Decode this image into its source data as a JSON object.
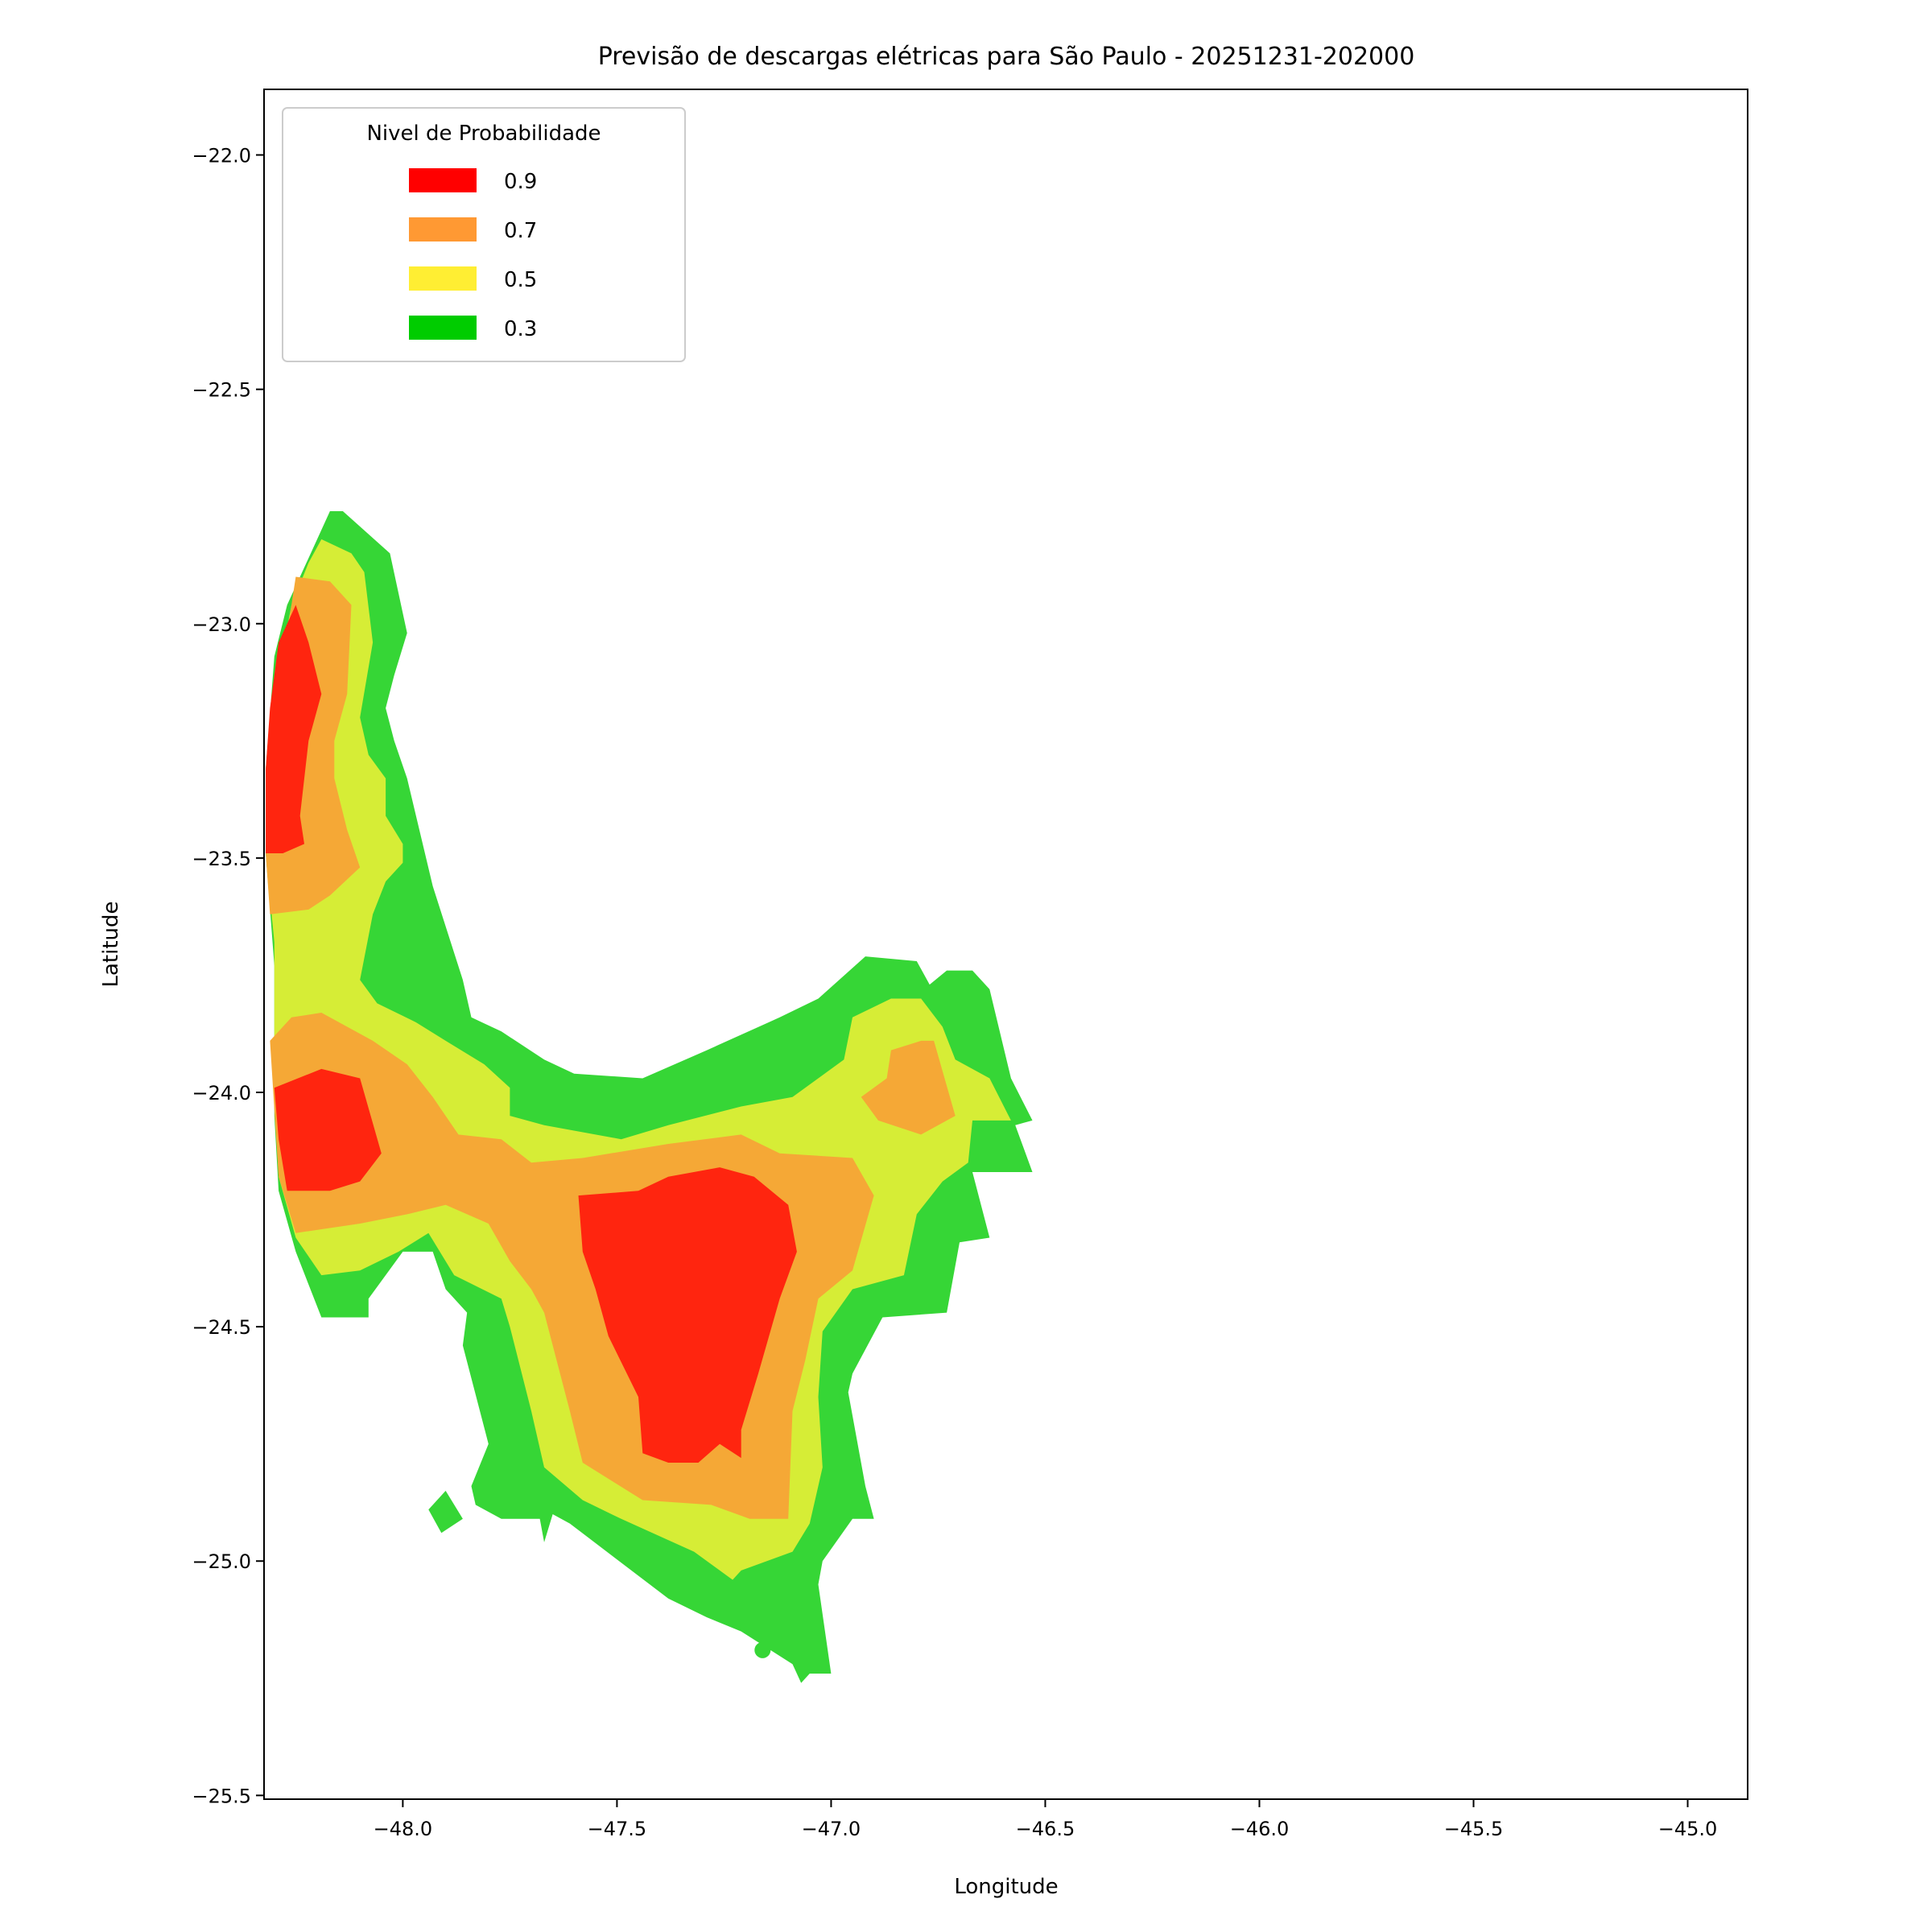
{
  "chart_data": {
    "type": "contour-map",
    "title": "Previsão de descargas elétricas para São Paulo - 20251231-202000",
    "xlabel": "Longitude",
    "ylabel": "Latitude",
    "xlim": [
      -48.324,
      -44.86
    ],
    "ylim": [
      -25.508,
      -21.86
    ],
    "xticks": [
      -48.0,
      -47.5,
      -47.0,
      -46.5,
      -46.0,
      -45.5,
      -45.0
    ],
    "xtick_labels": [
      "−48.0",
      "−47.5",
      "−47.0",
      "−46.5",
      "−46.0",
      "−45.5",
      "−45.0"
    ],
    "yticks": [
      -22.0,
      -22.5,
      -23.0,
      -23.5,
      -24.0,
      -24.5,
      -25.0,
      -25.5
    ],
    "ytick_labels": [
      "−22.0",
      "−22.5",
      "−23.0",
      "−23.5",
      "−24.0",
      "−24.5",
      "−25.0",
      "−25.5"
    ],
    "grid": false,
    "legend": {
      "title": "Nivel de Probabilidade",
      "placement": "upper-left",
      "entries": [
        {
          "label": "0.9",
          "color": "#ff0000"
        },
        {
          "label": "0.7",
          "color": "#ff9933"
        },
        {
          "label": "0.5",
          "color": "#ffee33"
        },
        {
          "label": "0.3",
          "color": "#00cc00"
        }
      ]
    },
    "levels": [
      {
        "level": 0.3,
        "fill": "#36d636",
        "polygons": [
          [
            [
              -48.17,
              -22.76
            ],
            [
              -48.14,
              -22.76
            ],
            [
              -48.03,
              -22.85
            ],
            [
              -47.99,
              -23.02
            ],
            [
              -48.02,
              -23.11
            ],
            [
              -48.04,
              -23.18
            ],
            [
              -48.02,
              -23.25
            ],
            [
              -47.99,
              -23.33
            ],
            [
              -47.93,
              -23.56
            ],
            [
              -47.86,
              -23.76
            ],
            [
              -47.84,
              -23.84
            ],
            [
              -47.77,
              -23.87
            ],
            [
              -47.67,
              -23.93
            ],
            [
              -47.6,
              -23.96
            ],
            [
              -47.44,
              -23.97
            ],
            [
              -47.29,
              -23.91
            ],
            [
              -47.12,
              -23.84
            ],
            [
              -47.03,
              -23.8
            ],
            [
              -46.92,
              -23.71
            ],
            [
              -46.8,
              -23.72
            ],
            [
              -46.77,
              -23.77
            ],
            [
              -46.73,
              -23.74
            ],
            [
              -46.67,
              -23.74
            ],
            [
              -46.63,
              -23.78
            ],
            [
              -46.58,
              -23.97
            ],
            [
              -46.53,
              -24.06
            ],
            [
              -46.57,
              -24.07
            ],
            [
              -46.53,
              -24.17
            ],
            [
              -46.67,
              -24.17
            ],
            [
              -46.63,
              -24.31
            ],
            [
              -46.7,
              -24.32
            ],
            [
              -46.73,
              -24.47
            ],
            [
              -46.88,
              -24.48
            ],
            [
              -46.95,
              -24.6
            ],
            [
              -46.96,
              -24.64
            ],
            [
              -46.92,
              -24.84
            ],
            [
              -46.9,
              -24.91
            ],
            [
              -46.95,
              -24.91
            ],
            [
              -47.02,
              -25.0
            ],
            [
              -47.03,
              -25.05
            ],
            [
              -47.0,
              -25.24
            ],
            [
              -47.05,
              -25.24
            ],
            [
              -47.07,
              -25.26
            ],
            [
              -47.09,
              -25.22
            ],
            [
              -47.21,
              -25.15
            ],
            [
              -47.29,
              -25.12
            ],
            [
              -47.38,
              -25.08
            ],
            [
              -47.61,
              -24.92
            ],
            [
              -47.65,
              -24.9
            ],
            [
              -47.67,
              -24.96
            ],
            [
              -47.68,
              -24.91
            ],
            [
              -47.77,
              -24.91
            ],
            [
              -47.83,
              -24.88
            ],
            [
              -47.84,
              -24.84
            ],
            [
              -47.8,
              -24.75
            ],
            [
              -47.86,
              -24.54
            ],
            [
              -47.85,
              -24.47
            ],
            [
              -47.9,
              -24.42
            ],
            [
              -47.93,
              -24.34
            ],
            [
              -48.0,
              -24.34
            ],
            [
              -48.08,
              -24.44
            ],
            [
              -48.08,
              -24.48
            ],
            [
              -48.19,
              -24.48
            ],
            [
              -48.25,
              -24.34
            ],
            [
              -48.29,
              -24.21
            ],
            [
              -48.3,
              -24.05
            ],
            [
              -48.3,
              -23.73
            ],
            [
              -48.32,
              -23.49
            ],
            [
              -48.32,
              -23.31
            ],
            [
              -48.3,
              -23.07
            ],
            [
              -48.27,
              -22.96
            ],
            [
              -48.23,
              -22.88
            ],
            [
              -48.2,
              -22.82
            ]
          ],
          [
            [
              -47.94,
              -24.89
            ],
            [
              -47.91,
              -24.94
            ],
            [
              -47.86,
              -24.91
            ],
            [
              -47.9,
              -24.85
            ]
          ]
        ],
        "points": [
          [
            -47.16,
            -25.19
          ]
        ]
      },
      {
        "level": 0.5,
        "fill": "#d6ed36",
        "polygons": [
          [
            [
              -48.19,
              -22.82
            ],
            [
              -48.12,
              -22.85
            ],
            [
              -48.09,
              -22.89
            ],
            [
              -48.07,
              -23.04
            ],
            [
              -48.1,
              -23.2
            ],
            [
              -48.08,
              -23.28
            ],
            [
              -48.04,
              -23.33
            ],
            [
              -48.04,
              -23.41
            ],
            [
              -48.0,
              -23.47
            ],
            [
              -48.0,
              -23.51
            ],
            [
              -48.04,
              -23.55
            ],
            [
              -48.07,
              -23.62
            ],
            [
              -48.1,
              -23.76
            ],
            [
              -48.06,
              -23.81
            ],
            [
              -47.97,
              -23.85
            ],
            [
              -47.9,
              -23.89
            ],
            [
              -47.81,
              -23.94
            ],
            [
              -47.75,
              -23.99
            ],
            [
              -47.75,
              -24.05
            ],
            [
              -47.67,
              -24.07
            ],
            [
              -47.49,
              -24.1
            ],
            [
              -47.38,
              -24.07
            ],
            [
              -47.21,
              -24.03
            ],
            [
              -47.09,
              -24.01
            ],
            [
              -46.97,
              -23.93
            ],
            [
              -46.95,
              -23.84
            ],
            [
              -46.86,
              -23.8
            ],
            [
              -46.79,
              -23.8
            ],
            [
              -46.74,
              -23.86
            ],
            [
              -46.71,
              -23.93
            ],
            [
              -46.63,
              -23.97
            ],
            [
              -46.58,
              -24.06
            ],
            [
              -46.67,
              -24.06
            ],
            [
              -46.68,
              -24.15
            ],
            [
              -46.74,
              -24.19
            ],
            [
              -46.8,
              -24.26
            ],
            [
              -46.83,
              -24.39
            ],
            [
              -46.95,
              -24.42
            ],
            [
              -47.02,
              -24.51
            ],
            [
              -47.03,
              -24.65
            ],
            [
              -47.02,
              -24.8
            ],
            [
              -47.05,
              -24.92
            ],
            [
              -47.09,
              -24.98
            ],
            [
              -47.21,
              -25.02
            ],
            [
              -47.23,
              -25.04
            ],
            [
              -47.32,
              -24.98
            ],
            [
              -47.49,
              -24.91
            ],
            [
              -47.58,
              -24.87
            ],
            [
              -47.67,
              -24.8
            ],
            [
              -47.7,
              -24.68
            ],
            [
              -47.75,
              -24.5
            ],
            [
              -47.77,
              -24.44
            ],
            [
              -47.88,
              -24.39
            ],
            [
              -47.94,
              -24.3
            ],
            [
              -48.01,
              -24.34
            ],
            [
              -48.1,
              -24.38
            ],
            [
              -48.19,
              -24.39
            ],
            [
              -48.25,
              -24.31
            ],
            [
              -48.29,
              -24.18
            ],
            [
              -48.3,
              -23.99
            ],
            [
              -48.3,
              -23.68
            ],
            [
              -48.32,
              -23.49
            ],
            [
              -48.32,
              -23.33
            ],
            [
              -48.3,
              -23.15
            ],
            [
              -48.26,
              -22.96
            ],
            [
              -48.22,
              -22.87
            ]
          ]
        ]
      },
      {
        "level": 0.7,
        "fill": "#f5a836",
        "polygons": [
          [
            [
              -48.25,
              -22.9
            ],
            [
              -48.17,
              -22.91
            ],
            [
              -48.12,
              -22.96
            ],
            [
              -48.13,
              -23.15
            ],
            [
              -48.16,
              -23.25
            ],
            [
              -48.16,
              -23.33
            ],
            [
              -48.13,
              -23.44
            ],
            [
              -48.1,
              -23.52
            ],
            [
              -48.17,
              -23.58
            ],
            [
              -48.22,
              -23.61
            ],
            [
              -48.31,
              -23.62
            ],
            [
              -48.32,
              -23.49
            ],
            [
              -48.32,
              -23.31
            ],
            [
              -48.3,
              -23.15
            ],
            [
              -48.27,
              -23.02
            ]
          ],
          [
            [
              -48.31,
              -23.89
            ],
            [
              -48.26,
              -23.84
            ],
            [
              -48.19,
              -23.83
            ],
            [
              -48.07,
              -23.89
            ],
            [
              -47.99,
              -23.94
            ],
            [
              -47.93,
              -24.01
            ],
            [
              -47.87,
              -24.09
            ],
            [
              -47.77,
              -24.1
            ],
            [
              -47.7,
              -24.15
            ],
            [
              -47.58,
              -24.14
            ],
            [
              -47.38,
              -24.11
            ],
            [
              -47.21,
              -24.09
            ],
            [
              -47.12,
              -24.13
            ],
            [
              -46.95,
              -24.14
            ],
            [
              -46.9,
              -24.22
            ],
            [
              -46.95,
              -24.38
            ],
            [
              -47.03,
              -24.44
            ],
            [
              -47.06,
              -24.57
            ],
            [
              -47.09,
              -24.68
            ],
            [
              -47.1,
              -24.91
            ],
            [
              -47.19,
              -24.91
            ],
            [
              -47.28,
              -24.88
            ],
            [
              -47.44,
              -24.87
            ],
            [
              -47.58,
              -24.79
            ],
            [
              -47.61,
              -24.68
            ],
            [
              -47.67,
              -24.47
            ],
            [
              -47.7,
              -24.42
            ],
            [
              -47.75,
              -24.36
            ],
            [
              -47.8,
              -24.28
            ],
            [
              -47.9,
              -24.24
            ],
            [
              -47.99,
              -24.26
            ],
            [
              -48.1,
              -24.28
            ],
            [
              -48.25,
              -24.3
            ],
            [
              -48.29,
              -24.18
            ]
          ],
          [
            [
              -46.86,
              -23.91
            ],
            [
              -46.79,
              -23.89
            ],
            [
              -46.76,
              -23.89
            ],
            [
              -46.71,
              -24.05
            ],
            [
              -46.79,
              -24.09
            ],
            [
              -46.89,
              -24.06
            ],
            [
              -46.93,
              -24.01
            ],
            [
              -46.87,
              -23.97
            ]
          ]
        ]
      },
      {
        "level": 0.9,
        "fill": "#ff250f",
        "polygons": [
          [
            [
              -48.25,
              -22.96
            ],
            [
              -48.22,
              -23.04
            ],
            [
              -48.19,
              -23.15
            ],
            [
              -48.22,
              -23.25
            ],
            [
              -48.24,
              -23.41
            ],
            [
              -48.23,
              -23.47
            ],
            [
              -48.28,
              -23.49
            ],
            [
              -48.32,
              -23.49
            ],
            [
              -48.32,
              -23.31
            ],
            [
              -48.31,
              -23.18
            ],
            [
              -48.29,
              -23.04
            ]
          ],
          [
            [
              -48.3,
              -23.99
            ],
            [
              -48.19,
              -23.95
            ],
            [
              -48.1,
              -23.97
            ],
            [
              -48.05,
              -24.13
            ],
            [
              -48.1,
              -24.19
            ],
            [
              -48.17,
              -24.21
            ],
            [
              -48.27,
              -24.21
            ],
            [
              -48.29,
              -24.1
            ]
          ],
          [
            [
              -47.59,
              -24.22
            ],
            [
              -47.45,
              -24.21
            ],
            [
              -47.38,
              -24.18
            ],
            [
              -47.26,
              -24.16
            ],
            [
              -47.18,
              -24.18
            ],
            [
              -47.1,
              -24.24
            ],
            [
              -47.08,
              -24.34
            ],
            [
              -47.12,
              -24.44
            ],
            [
              -47.17,
              -24.6
            ],
            [
              -47.21,
              -24.72
            ],
            [
              -47.21,
              -24.78
            ],
            [
              -47.26,
              -24.75
            ],
            [
              -47.31,
              -24.79
            ],
            [
              -47.38,
              -24.79
            ],
            [
              -47.44,
              -24.77
            ],
            [
              -47.45,
              -24.65
            ],
            [
              -47.52,
              -24.52
            ],
            [
              -47.55,
              -24.42
            ],
            [
              -47.58,
              -24.34
            ]
          ]
        ]
      }
    ]
  }
}
